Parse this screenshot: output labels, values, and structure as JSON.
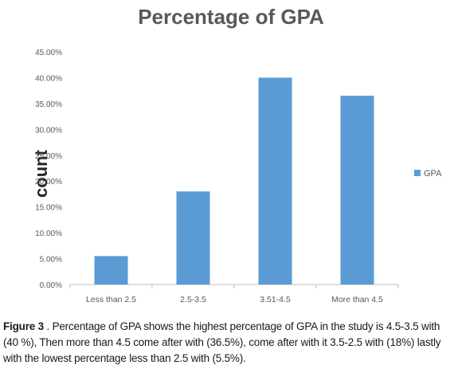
{
  "chart_data": {
    "type": "bar",
    "title": "Percentage of GPA",
    "xlabel": "",
    "ylabel": "count",
    "categories": [
      "Less than 2.5",
      "2.5-3.5",
      "3.51-4.5",
      "More than 4.5"
    ],
    "series": [
      {
        "name": "GPA",
        "values": [
          5.5,
          18,
          40,
          36.5
        ],
        "color": "#5B9BD5"
      }
    ],
    "yticks": [
      "0.00%",
      "5.00%",
      "10.00%",
      "15.00%",
      "20.00%",
      "25.00%",
      "30.00%",
      "35.00%",
      "40.00%",
      "45.00%"
    ],
    "ylim": [
      0,
      45
    ],
    "grid": false,
    "legend_position": "right"
  },
  "caption": {
    "label": "Figure 3",
    "text": " . Percentage of GPA shows the highest percentage of GPA in the study is 4.5-3.5 with (40 %), Then more than 4.5 come after with (36.5%), come after with it 3.5-2.5 with (18%) lastly with the lowest percentage less than 2.5 with (5.5%)."
  }
}
